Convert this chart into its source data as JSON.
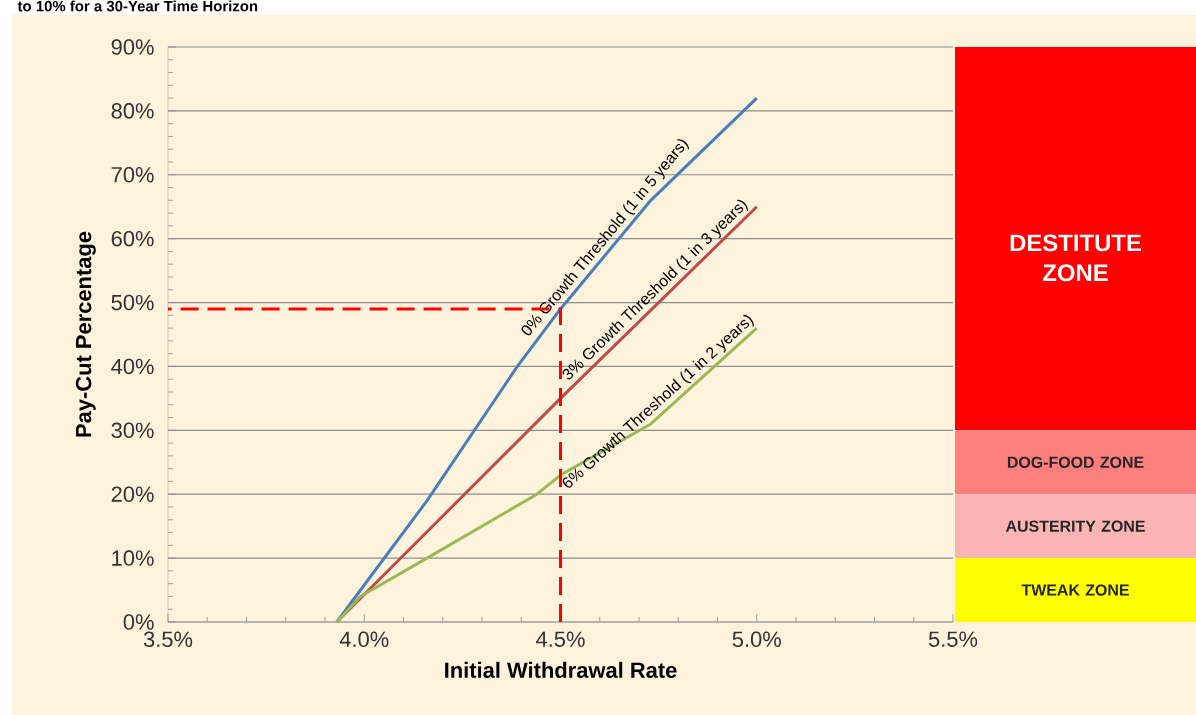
{
  "chart_data": [
    {
      "type": "line",
      "title": "to 10% for a 30-Year Time Horizon",
      "xlabel": "Initial Withdrawal Rate",
      "ylabel": "Pay-Cut Percentage",
      "xlim": [
        3.5,
        5.5
      ],
      "ylim": [
        0,
        90
      ],
      "xticks": [
        {
          "value": 3.5,
          "label": "3.5%"
        },
        {
          "value": 4.0,
          "label": "4.0%"
        },
        {
          "value": 4.5,
          "label": "4.5%"
        },
        {
          "value": 5.0,
          "label": "5.0%"
        },
        {
          "value": 5.5,
          "label": "5.5%"
        }
      ],
      "yticks": [
        {
          "value": 0,
          "label": "0%"
        },
        {
          "value": 10,
          "label": "10%"
        },
        {
          "value": 20,
          "label": "20%"
        },
        {
          "value": 30,
          "label": "30%"
        },
        {
          "value": 40,
          "label": "40%"
        },
        {
          "value": 50,
          "label": "50%"
        },
        {
          "value": 60,
          "label": "60%"
        },
        {
          "value": 70,
          "label": "70%"
        },
        {
          "value": 80,
          "label": "80%"
        },
        {
          "value": 90,
          "label": "90%"
        }
      ],
      "grid": "y",
      "series": [
        {
          "name": "0% Growth Threshold (1 in 5 years)",
          "color": "#4a7ebb",
          "x": [
            3.93,
            4.16,
            4.39,
            4.5,
            4.73,
            5.0
          ],
          "values": [
            0,
            19,
            40,
            49,
            66,
            82
          ]
        },
        {
          "name": "3% Growth Threshold (1 in 3 years)",
          "color": "#be4b48",
          "x": [
            3.93,
            4.5,
            5.0
          ],
          "values": [
            0,
            35,
            65
          ]
        },
        {
          "name": "6% Growth Threshold (1 in 2 years)",
          "color": "#98b954",
          "x": [
            3.93,
            3.99,
            4.16,
            4.44,
            4.5,
            4.73,
            5.0
          ],
          "values": [
            0,
            4,
            10,
            20,
            23,
            31,
            46
          ]
        },
        {
          "color": "#ff0000",
          "line_style": "dashed",
          "x": [
            4.5,
            4.5,
            3.5
          ],
          "values": [
            0,
            49,
            49
          ]
        }
      ]
    },
    {
      "type": "bar",
      "stacked": true,
      "categories": [
        null
      ],
      "ylim": [
        0,
        90
      ],
      "series": [
        {
          "name": "TWEAK ZONE",
          "color": "#ffff00",
          "values": [
            10
          ]
        },
        {
          "name": "AUSTERITY ZONE",
          "color": "#fbb4b4",
          "values": [
            10
          ]
        },
        {
          "name": "DOG-FOOD ZONE",
          "color": "#ff7f7f",
          "values": [
            10
          ]
        },
        {
          "name": "DESTITUTE ZONE",
          "color": "#ff0000",
          "values": [
            60
          ]
        }
      ]
    }
  ]
}
